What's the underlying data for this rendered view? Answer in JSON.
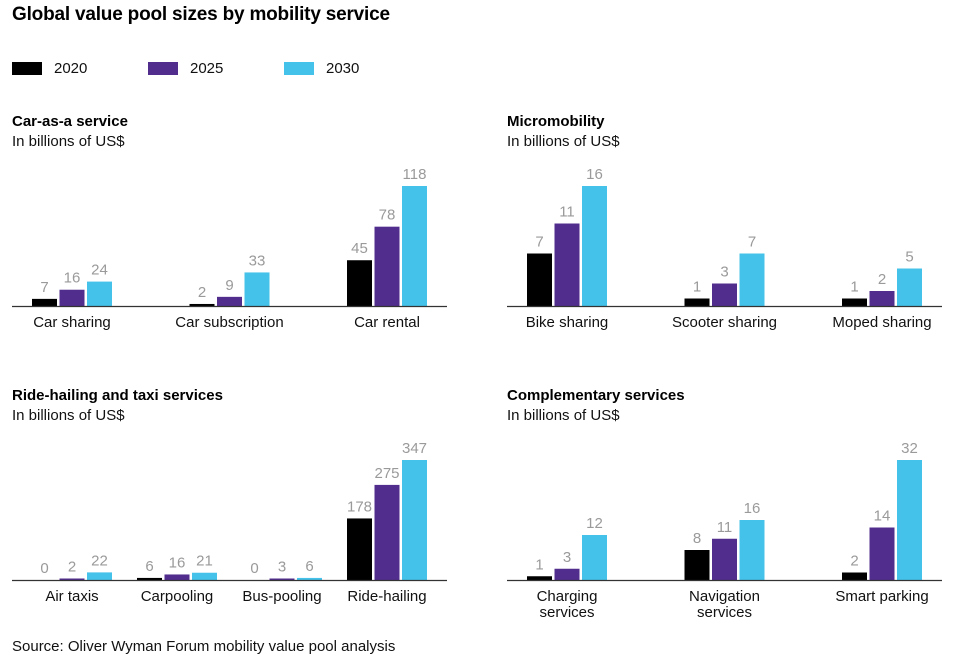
{
  "title": "Global value pool sizes by mobility service",
  "legend": [
    {
      "label": "2020",
      "color": "#000000"
    },
    {
      "label": "2025",
      "color": "#512D8E"
    },
    {
      "label": "2030",
      "color": "#44C2EA"
    }
  ],
  "source": "Source: Oliver Wyman Forum mobility value pool analysis",
  "chart_data": [
    {
      "type": "bar",
      "title": "Car-as-a service",
      "subtitle": "In billions of US$",
      "categories": [
        [
          "Car sharing"
        ],
        [
          "Car subscription"
        ],
        [
          "Car rental"
        ]
      ],
      "series": [
        {
          "name": "2020",
          "values": [
            7,
            2,
            45
          ]
        },
        {
          "name": "2025",
          "values": [
            16,
            9,
            78
          ]
        },
        {
          "name": "2030",
          "values": [
            24,
            33,
            118
          ]
        }
      ],
      "ylim": [
        0,
        118
      ],
      "grid": false,
      "legend": "top-left"
    },
    {
      "type": "bar",
      "title": "Micromobility",
      "subtitle": "In billions of US$",
      "categories": [
        [
          "Bike sharing"
        ],
        [
          "Scooter sharing"
        ],
        [
          "Moped sharing"
        ]
      ],
      "series": [
        {
          "name": "2020",
          "values": [
            7,
            1,
            1
          ]
        },
        {
          "name": "2025",
          "values": [
            11,
            3,
            2
          ]
        },
        {
          "name": "2030",
          "values": [
            16,
            7,
            5
          ]
        }
      ],
      "ylim": [
        0,
        16
      ],
      "grid": false,
      "legend": "top-left"
    },
    {
      "type": "bar",
      "title": "Ride-hailing and taxi services",
      "subtitle": "In billions of US$",
      "categories": [
        [
          "Air taxis"
        ],
        [
          "Carpooling"
        ],
        [
          "Bus-pooling"
        ],
        [
          "Ride-hailing"
        ]
      ],
      "series": [
        {
          "name": "2020",
          "values": [
            0,
            6,
            0,
            178
          ]
        },
        {
          "name": "2025",
          "values": [
            2,
            16,
            3,
            275
          ]
        },
        {
          "name": "2030",
          "values": [
            22,
            21,
            6,
            347
          ]
        }
      ],
      "ylim": [
        0,
        347
      ],
      "grid": false,
      "legend": "top-left"
    },
    {
      "type": "bar",
      "title": "Complementary services",
      "subtitle": "In billions of US$",
      "categories": [
        [
          "Charging",
          "services"
        ],
        [
          "Navigation",
          "services"
        ],
        [
          "Smart parking"
        ]
      ],
      "series": [
        {
          "name": "2020",
          "values": [
            1,
            8,
            2
          ]
        },
        {
          "name": "2025",
          "values": [
            3,
            11,
            14
          ]
        },
        {
          "name": "2030",
          "values": [
            12,
            16,
            32
          ]
        }
      ],
      "ylim": [
        0,
        32
      ],
      "grid": false,
      "legend": "top-left"
    }
  ]
}
